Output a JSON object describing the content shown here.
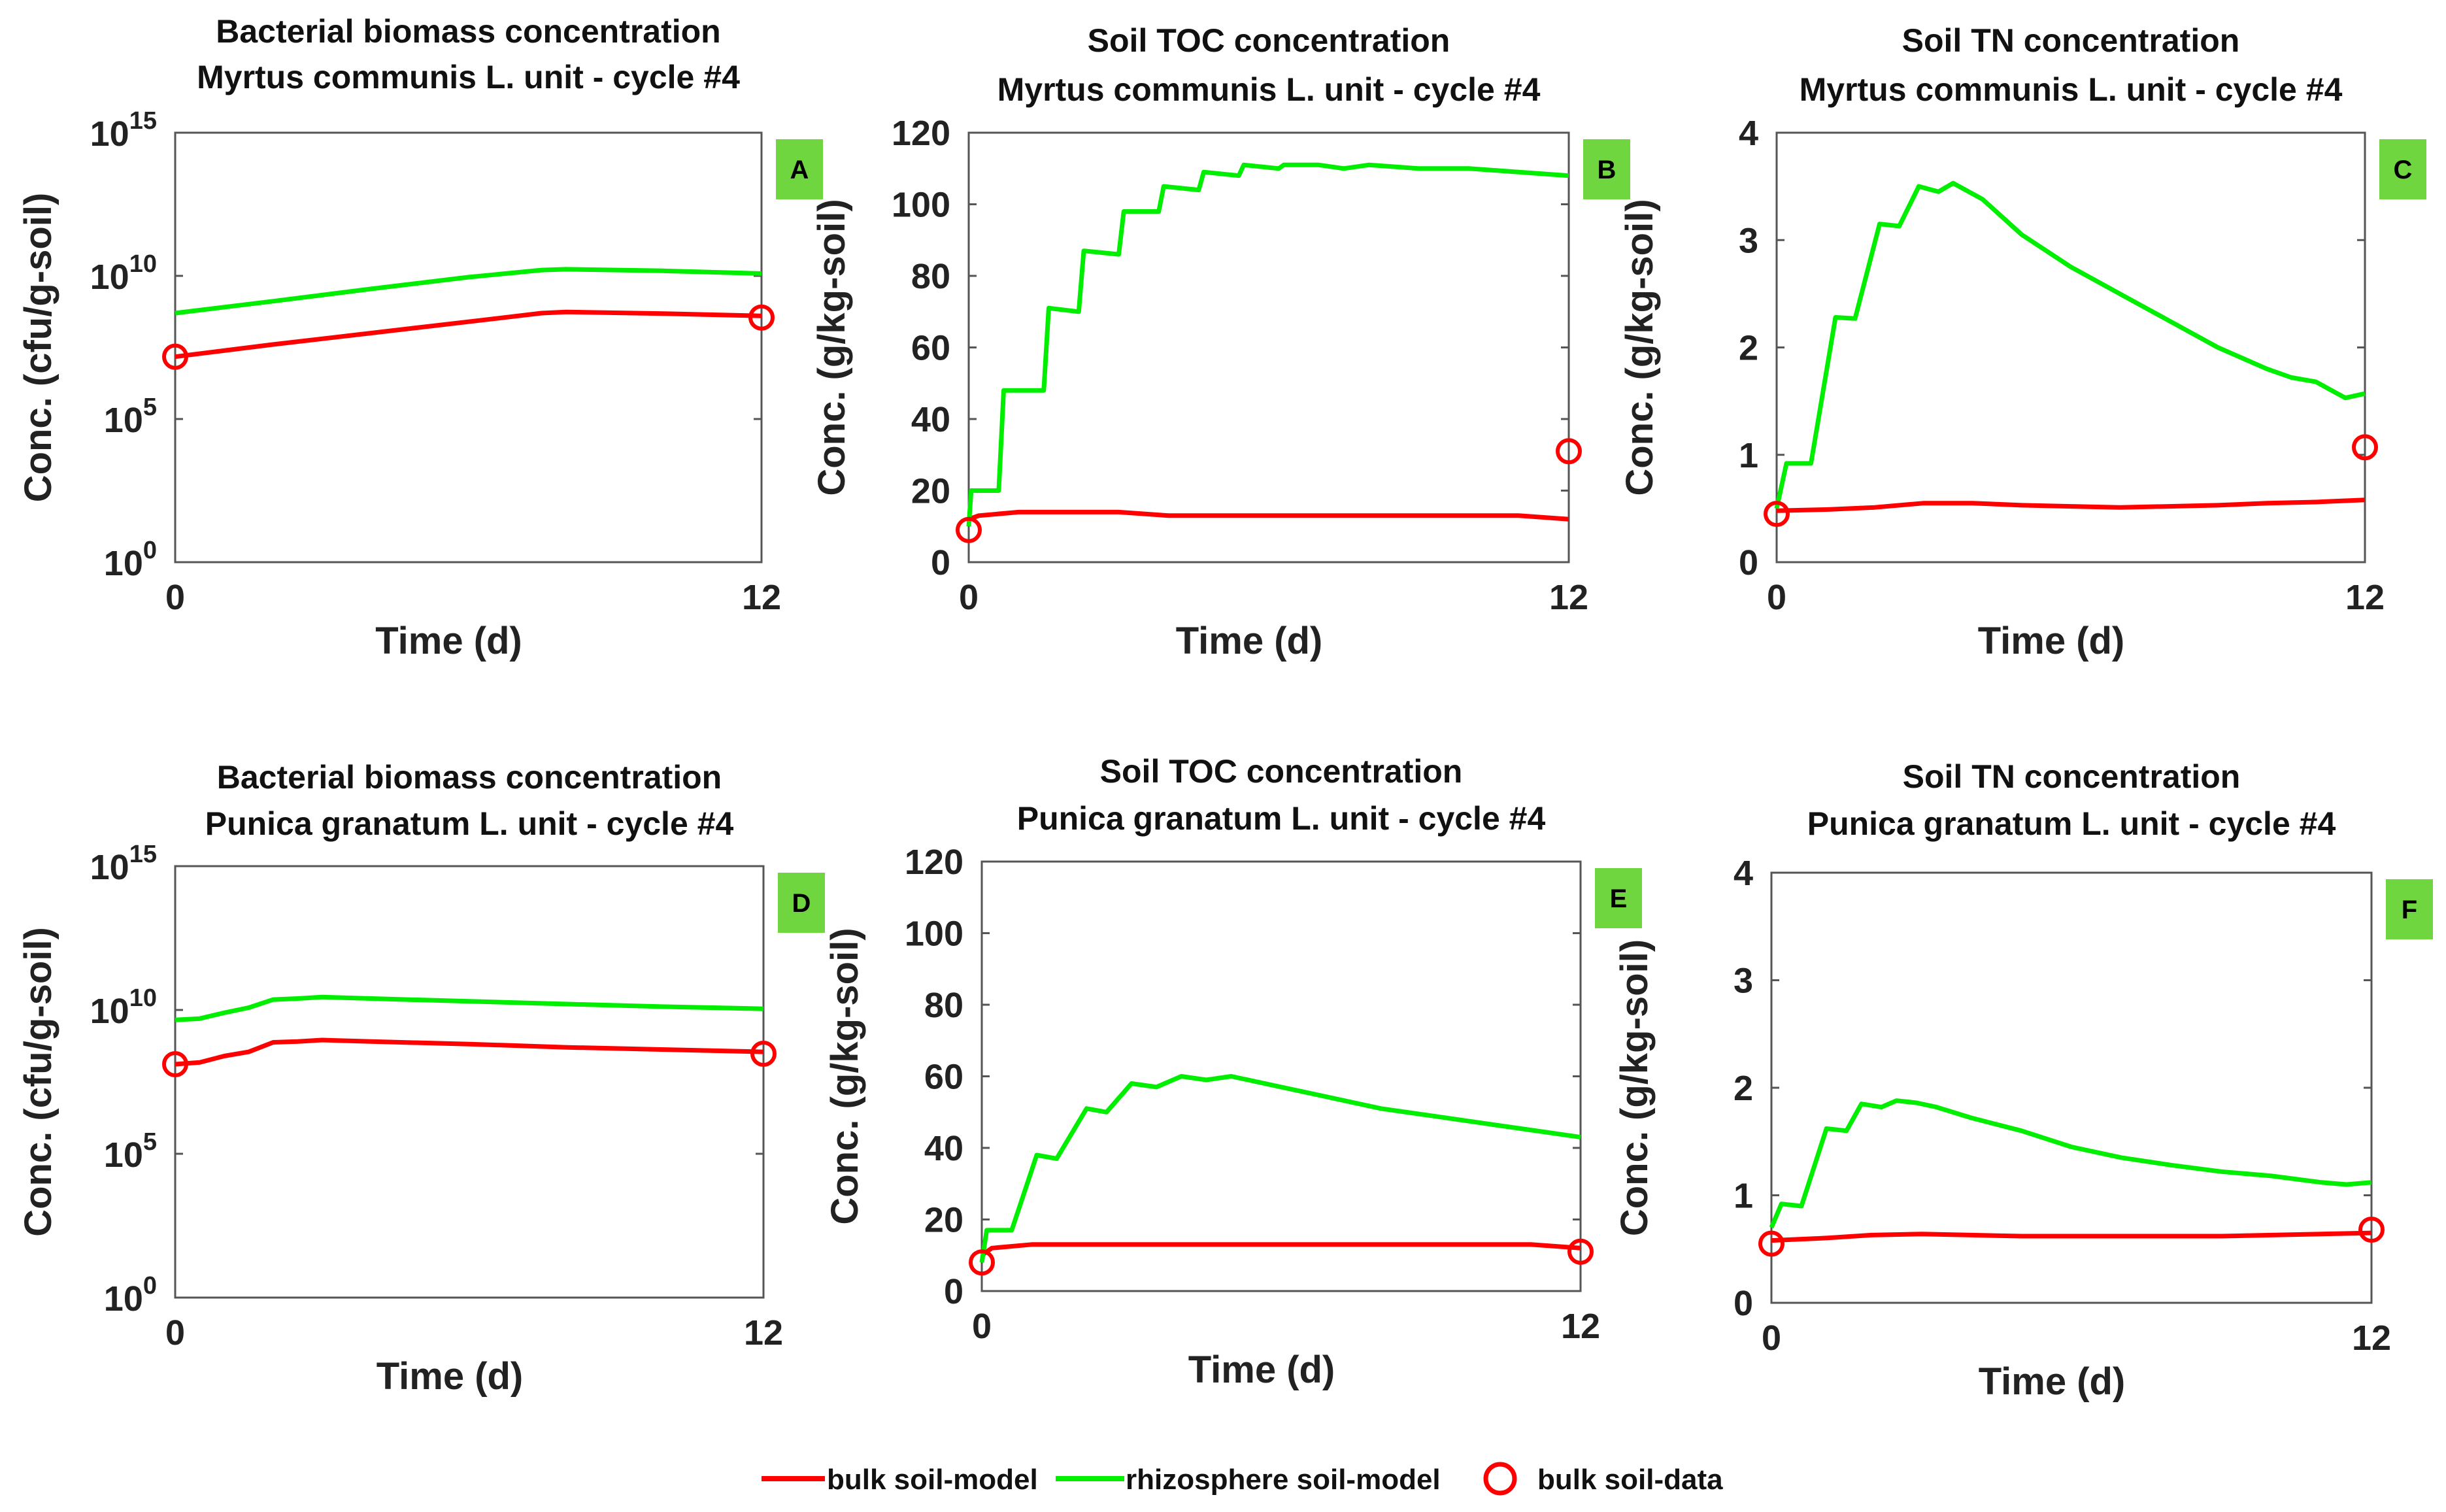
{
  "colors": {
    "bulk_model": "#ff0000",
    "rhizo_model": "#00ee00",
    "bulk_data": "#ff0000",
    "badge": "#6fd640"
  },
  "legend": {
    "bulk_model": "bulk soil-model",
    "rhizo_model": "rhizosphere soil-model",
    "bulk_data": "bulk soil-data"
  },
  "chart_data": [
    {
      "id": "A",
      "type": "line",
      "yscale": "log",
      "title_line1": "Bacterial biomass concentration",
      "title_line2": "Myrtus communis L. unit - cycle #4",
      "xlabel": "Time (d)",
      "ylabel": "Conc. (cfu/g-soil)",
      "xlim": [
        0,
        12
      ],
      "ylim": [
        1,
        1000000000000000.0
      ],
      "xticks": [
        "0",
        "12"
      ],
      "yticks": [
        {
          "base": "10",
          "exp": "0"
        },
        {
          "base": "10",
          "exp": "5"
        },
        {
          "base": "10",
          "exp": "10"
        },
        {
          "base": "10",
          "exp": "15"
        }
      ],
      "series": [
        {
          "name": "bulk soil-model",
          "x": [
            0,
            2,
            4,
            6,
            7.5,
            8,
            10,
            12
          ],
          "y": [
            15000000.0,
            40000000.0,
            100000000.0,
            250000000.0,
            500000000.0,
            550000000.0,
            480000000.0,
            400000000.0
          ]
        },
        {
          "name": "rhizosphere soil-model",
          "x": [
            0,
            2,
            4,
            6,
            7.5,
            8,
            10,
            12
          ],
          "y": [
            500000000.0,
            1300000000.0,
            3500000000.0,
            9000000000.0,
            16000000000.0,
            17000000000.0,
            15000000000.0,
            12000000000.0
          ]
        }
      ],
      "data_points": {
        "name": "bulk soil-data",
        "x": [
          0,
          12
        ],
        "y": [
          15000000.0,
          350000000.0
        ]
      }
    },
    {
      "id": "B",
      "type": "line",
      "yscale": "linear",
      "title_line1": "Soil TOC concentration",
      "title_line2": "Myrtus communis L. unit - cycle #4",
      "xlabel": "Time (d)",
      "ylabel": "Conc. (g/kg-soil)",
      "xlim": [
        0,
        12
      ],
      "ylim": [
        0,
        120
      ],
      "xticks": [
        "0",
        "12"
      ],
      "yticks": [
        "0",
        "20",
        "40",
        "60",
        "80",
        "100",
        "120"
      ],
      "series": [
        {
          "name": "bulk soil-model",
          "x": [
            0,
            0.2,
            1,
            2,
            3,
            4,
            5,
            6,
            7,
            8,
            9,
            10,
            11,
            12
          ],
          "y": [
            12,
            13,
            14,
            14,
            14,
            13,
            13,
            13,
            13,
            13,
            13,
            13,
            13,
            12
          ]
        },
        {
          "name": "rhizosphere soil-model",
          "x": [
            0,
            0.05,
            0.6,
            0.7,
            1.5,
            1.6,
            2.2,
            2.3,
            3.0,
            3.1,
            3.8,
            3.9,
            4.6,
            4.7,
            5.4,
            5.5,
            6.2,
            6.3,
            7.0,
            7.5,
            8.0,
            9.0,
            10.0,
            11.0,
            12.0
          ],
          "y": [
            10,
            20,
            20,
            48,
            48,
            71,
            70,
            87,
            86,
            98,
            98,
            105,
            104,
            109,
            108,
            111,
            110,
            111,
            111,
            110,
            111,
            110,
            110,
            109,
            108
          ]
        }
      ],
      "data_points": {
        "name": "bulk soil-data",
        "x": [
          0,
          12
        ],
        "y": [
          9,
          31
        ]
      }
    },
    {
      "id": "C",
      "type": "line",
      "yscale": "linear",
      "title_line1": "Soil TN concentration",
      "title_line2": "Myrtus communis L. unit - cycle #4",
      "xlabel": "Time (d)",
      "ylabel": "Conc. (g/kg-soil)",
      "xlim": [
        0,
        12
      ],
      "ylim": [
        0,
        4
      ],
      "xticks": [
        "0",
        "12"
      ],
      "yticks": [
        "0",
        "1",
        "2",
        "3",
        "4"
      ],
      "series": [
        {
          "name": "bulk soil-model",
          "x": [
            0,
            1,
            2,
            3,
            4,
            5,
            6,
            7,
            8,
            9,
            10,
            11,
            12
          ],
          "y": [
            0.48,
            0.49,
            0.51,
            0.55,
            0.55,
            0.53,
            0.52,
            0.51,
            0.52,
            0.53,
            0.55,
            0.56,
            0.58
          ]
        },
        {
          "name": "rhizosphere soil-model",
          "x": [
            0,
            0.2,
            0.7,
            1.2,
            1.6,
            2.1,
            2.5,
            2.9,
            3.3,
            3.6,
            4.2,
            5.0,
            6.0,
            7.0,
            8.0,
            9.0,
            10.0,
            10.5,
            11.0,
            11.6,
            12.0
          ],
          "y": [
            0.5,
            0.92,
            0.92,
            2.28,
            2.27,
            3.15,
            3.13,
            3.5,
            3.45,
            3.53,
            3.38,
            3.05,
            2.75,
            2.5,
            2.25,
            2.0,
            1.8,
            1.72,
            1.68,
            1.53,
            1.57
          ]
        }
      ],
      "data_points": {
        "name": "bulk soil-data",
        "x": [
          0,
          12
        ],
        "y": [
          0.45,
          1.07
        ]
      }
    },
    {
      "id": "D",
      "type": "line",
      "yscale": "log",
      "title_line1": "Bacterial biomass concentration",
      "title_line2": "Punica granatum L. unit - cycle #4",
      "xlabel": "Time (d)",
      "ylabel": "Conc. (cfu/g-soil)",
      "xlim": [
        0,
        12
      ],
      "ylim": [
        1,
        1000000000000000.0
      ],
      "xticks": [
        "0",
        "12"
      ],
      "yticks": [
        {
          "base": "10",
          "exp": "0"
        },
        {
          "base": "10",
          "exp": "5"
        },
        {
          "base": "10",
          "exp": "10"
        },
        {
          "base": "10",
          "exp": "15"
        }
      ],
      "series": [
        {
          "name": "bulk soil-model",
          "x": [
            0,
            0.5,
            1,
            1.5,
            2,
            2.5,
            3,
            4,
            6,
            8,
            10,
            12
          ],
          "y": [
            130000000.0,
            150000000.0,
            250000000.0,
            350000000.0,
            750000000.0,
            800000000.0,
            900000000.0,
            800000000.0,
            650000000.0,
            500000000.0,
            420000000.0,
            350000000.0
          ]
        },
        {
          "name": "rhizosphere soil-model",
          "x": [
            0,
            0.5,
            1,
            1.5,
            2,
            2.5,
            3,
            4,
            6,
            8,
            10,
            12
          ],
          "y": [
            4500000000.0,
            5000000000.0,
            8000000000.0,
            12000000000.0,
            23000000000.0,
            25000000000.0,
            28000000000.0,
            25000000000.0,
            20000000000.0,
            16000000000.0,
            13000000000.0,
            11000000000.0
          ]
        }
      ],
      "data_points": {
        "name": "bulk soil-data",
        "x": [
          0,
          12
        ],
        "y": [
          130000000.0,
          300000000.0
        ]
      }
    },
    {
      "id": "E",
      "type": "line",
      "yscale": "linear",
      "title_line1": "Soil TOC concentration",
      "title_line2": "Punica granatum L. unit - cycle #4",
      "xlabel": "Time (d)",
      "ylabel": "Conc. (g/kg-soil)",
      "xlim": [
        0,
        12
      ],
      "ylim": [
        0,
        120
      ],
      "xticks": [
        "0",
        "12"
      ],
      "yticks": [
        "0",
        "20",
        "40",
        "60",
        "80",
        "100",
        "120"
      ],
      "series": [
        {
          "name": "bulk soil-model",
          "x": [
            0,
            0.2,
            1,
            2,
            3,
            4,
            5,
            6,
            7,
            8,
            9,
            10,
            11,
            12
          ],
          "y": [
            10,
            12,
            13,
            13,
            13,
            13,
            13,
            13,
            13,
            13,
            13,
            13,
            13,
            12
          ]
        },
        {
          "name": "rhizosphere soil-model",
          "x": [
            0,
            0.1,
            0.6,
            1.1,
            1.5,
            2.1,
            2.5,
            3.0,
            3.5,
            4.0,
            4.5,
            5.0,
            6.0,
            7.0,
            8.0,
            9.0,
            10.0,
            11.0,
            12.0
          ],
          "y": [
            8,
            17,
            17,
            38,
            37,
            51,
            50,
            58,
            57,
            60,
            59,
            60,
            57,
            54,
            51,
            49,
            47,
            45,
            43
          ]
        }
      ],
      "data_points": {
        "name": "bulk soil-data",
        "x": [
          0,
          12
        ],
        "y": [
          8,
          11
        ]
      }
    },
    {
      "id": "F",
      "type": "line",
      "yscale": "linear",
      "title_line1": "Soil TN concentration",
      "title_line2": "Punica granatum L. unit - cycle #4",
      "xlabel": "Time (d)",
      "ylabel": "Conc. (g/kg-soil)",
      "xlim": [
        0,
        12
      ],
      "ylim": [
        0,
        4
      ],
      "xticks": [
        "0",
        "12"
      ],
      "yticks": [
        "0",
        "1",
        "2",
        "3",
        "4"
      ],
      "series": [
        {
          "name": "bulk soil-model",
          "x": [
            0,
            1,
            2,
            3,
            4,
            5,
            6,
            7,
            8,
            9,
            10,
            11,
            12
          ],
          "y": [
            0.58,
            0.6,
            0.63,
            0.64,
            0.63,
            0.62,
            0.62,
            0.62,
            0.62,
            0.62,
            0.63,
            0.64,
            0.65
          ]
        },
        {
          "name": "rhizosphere soil-model",
          "x": [
            0,
            0.2,
            0.6,
            1.1,
            1.5,
            1.8,
            2.2,
            2.5,
            2.9,
            3.3,
            4.0,
            5.0,
            6.0,
            7.0,
            8.0,
            9.0,
            10.0,
            11.0,
            11.5,
            12.0
          ],
          "y": [
            0.7,
            0.92,
            0.9,
            1.62,
            1.6,
            1.85,
            1.82,
            1.88,
            1.86,
            1.82,
            1.72,
            1.6,
            1.45,
            1.35,
            1.28,
            1.22,
            1.18,
            1.12,
            1.1,
            1.12
          ]
        }
      ],
      "data_points": {
        "name": "bulk soil-data",
        "x": [
          0,
          12
        ],
        "y": [
          0.55,
          0.68
        ]
      }
    }
  ]
}
